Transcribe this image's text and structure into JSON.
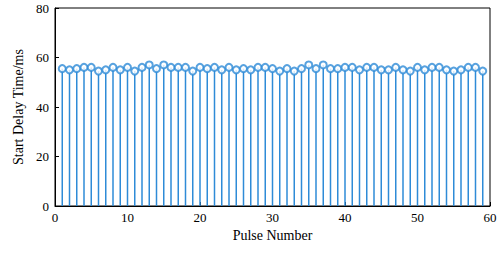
{
  "chart_data": {
    "type": "stem",
    "x_label": "Pulse Number",
    "y_label": "Start Delay Time/ms",
    "x": [
      1,
      2,
      3,
      4,
      5,
      6,
      7,
      8,
      9,
      10,
      11,
      12,
      13,
      14,
      15,
      16,
      17,
      18,
      19,
      20,
      21,
      22,
      23,
      24,
      25,
      26,
      27,
      28,
      29,
      30,
      31,
      32,
      33,
      34,
      35,
      36,
      37,
      38,
      39,
      40,
      41,
      42,
      43,
      44,
      45,
      46,
      47,
      48,
      49,
      50,
      51,
      52,
      53,
      54,
      55,
      56,
      57,
      58,
      59
    ],
    "values": [
      55.5,
      55,
      55.5,
      56,
      56,
      54.5,
      55,
      56,
      55,
      56,
      54.5,
      56,
      57,
      55.5,
      57,
      56,
      56,
      56,
      54.5,
      56,
      55.5,
      56,
      55,
      56,
      55,
      55.5,
      55,
      56,
      56,
      55.5,
      54.5,
      55.5,
      54.5,
      55.5,
      57,
      55.5,
      57,
      55.5,
      55.5,
      56,
      56,
      55,
      56,
      56,
      55,
      55,
      56,
      55,
      54.5,
      56,
      55,
      56,
      56,
      55,
      54.5,
      55,
      56,
      56,
      54.5
    ],
    "color": "#2e8bd7",
    "marker": "circle",
    "xlim": [
      0,
      60
    ],
    "xticks": [
      0,
      10,
      20,
      30,
      40,
      50,
      60
    ],
    "ylim": [
      0,
      80
    ],
    "yticks": [
      0,
      20,
      40,
      60,
      80
    ],
    "grid": false
  }
}
